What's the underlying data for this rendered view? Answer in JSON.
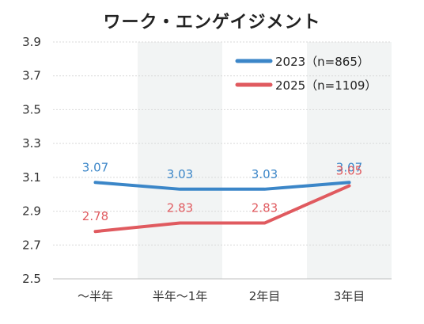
{
  "chart_data": {
    "type": "line",
    "title": "ワーク・エンゲイジメント",
    "categories": [
      "〜半年",
      "半年〜1年",
      "2年目",
      "3年目"
    ],
    "series": [
      {
        "name": "2023（n=865）",
        "color": "#3b86c8",
        "values": [
          3.07,
          3.03,
          3.03,
          3.07
        ],
        "labels": [
          "3.07",
          "3.03",
          "3.03",
          "3.07"
        ]
      },
      {
        "name": "2025（n=1109）",
        "color": "#e05a5f",
        "values": [
          2.78,
          2.83,
          2.83,
          3.05
        ],
        "labels": [
          "2.78",
          "2.83",
          "2.83",
          "3.05"
        ]
      }
    ],
    "ylim": [
      2.5,
      3.9
    ],
    "yticks": [
      "2.5",
      "2.7",
      "2.9",
      "3.1",
      "3.3",
      "3.5",
      "3.7",
      "3.9"
    ],
    "xlabel": "",
    "ylabel": "",
    "grid": true,
    "shaded_bands": [
      1,
      3
    ],
    "legend_position": "top-right"
  }
}
